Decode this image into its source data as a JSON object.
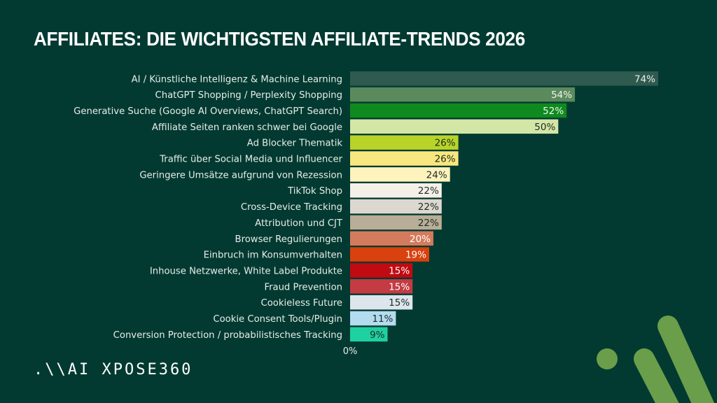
{
  "header": {
    "title": "AFFILIATES: DIE WICHTIGSTEN AFFILIATE-TRENDS 2026"
  },
  "footer": {
    "logo_text": ".\\\\AI XPOSE360"
  },
  "colors": {
    "background": "#023a31",
    "decor_green": "#6a9e4a"
  },
  "chart_data": {
    "type": "bar",
    "orientation": "horizontal",
    "title": "AFFILIATES: DIE WICHTIGSTEN AFFILIATE-TRENDS 2026",
    "xlabel": "",
    "ylabel": "",
    "xlim": [
      0,
      74
    ],
    "x_ticks": [
      "0%"
    ],
    "grid": false,
    "legend": "none",
    "unit": "%",
    "categories": [
      "AI / Künstliche Intelligenz & Machine Learning",
      "ChatGPT Shopping / Perplexity Shopping",
      "Generative Suche (Google AI Overviews, ChatGPT Search)",
      "Affiliate Seiten ranken schwer bei Google",
      "Ad Blocker Thematik",
      "Traffic über Social Media und Influencer",
      "Geringere Umsätze aufgrund von Rezession",
      "TikTok Shop",
      "Cross-Device Tracking",
      "Attribution und CJT",
      "Browser Regulierungen",
      "Einbruch im Konsumverhalten",
      "Inhouse Netzwerke, White Label Produkte",
      "Fraud Prevention",
      "Cookieless Future",
      "Cookie Consent Tools/Plugin",
      "Conversion Protection / probabilistisches Tracking"
    ],
    "values": [
      74,
      54,
      52,
      50,
      26,
      26,
      24,
      22,
      22,
      22,
      20,
      19,
      15,
      15,
      15,
      11,
      9
    ],
    "data_labels": [
      "74%",
      "54%",
      "52%",
      "50%",
      "26%",
      "26%",
      "24%",
      "22%",
      "22%",
      "22%",
      "20%",
      "19%",
      "15%",
      "15%",
      "15%",
      "11%",
      "9%"
    ],
    "bar_colors": [
      "#2f5a4f",
      "#5b8a5c",
      "#0f8a1f",
      "#d4e6a6",
      "#b8d428",
      "#f7e77e",
      "#fff3bd",
      "#f4f0e8",
      "#dcd8cf",
      "#b8ad96",
      "#d47b5d",
      "#d9410f",
      "#c10a12",
      "#c43b43",
      "#dde6ec",
      "#b3dcee",
      "#1fd0a0"
    ],
    "label_colors": [
      "#e8efe9",
      "#f2f5f0",
      "#f2f5f0",
      "#1d2a24",
      "#1d2a24",
      "#1d2a24",
      "#1d2a24",
      "#1d2a24",
      "#1d2a24",
      "#1d2a24",
      "#ffffff",
      "#ffffff",
      "#ffffff",
      "#ffffff",
      "#1d2a24",
      "#1d2a24",
      "#1d2a24"
    ]
  }
}
